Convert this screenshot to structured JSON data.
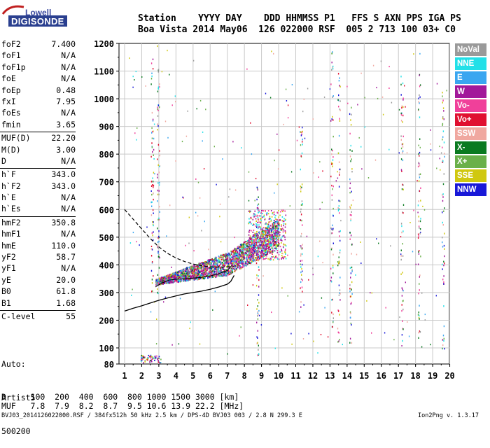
{
  "logo": {
    "top": "Lowell",
    "main": "DIGISONDE"
  },
  "header": {
    "line1": "Station    YYYY DAY    DDD HHMMSS P1   FFS S AXN PPS IGA PS",
    "line2": "Boa Vista 2014 May06  126 022000 RSF  005 2 713 100 03+ C0"
  },
  "params": [
    {
      "k": "foF2",
      "v": "7.400"
    },
    {
      "k": "foF1",
      "v": "N/A"
    },
    {
      "k": "foF1p",
      "v": "N/A"
    },
    {
      "k": "foE",
      "v": "N/A"
    },
    {
      "k": "foEp",
      "v": "0.48"
    },
    {
      "k": "fxI",
      "v": "7.95"
    },
    {
      "k": "foEs",
      "v": "N/A"
    },
    {
      "k": "fmin",
      "v": "3.65"
    },
    {
      "k": "MUF(D)",
      "v": "22.20"
    },
    {
      "k": "M(D)",
      "v": "3.00"
    },
    {
      "k": "D",
      "v": "N/A"
    },
    {
      "k": "h`F",
      "v": "343.0"
    },
    {
      "k": "h`F2",
      "v": "343.0"
    },
    {
      "k": "h`E",
      "v": "N/A"
    },
    {
      "k": "h`Es",
      "v": "N/A"
    },
    {
      "k": "hmF2",
      "v": "350.8"
    },
    {
      "k": "hmF1",
      "v": "N/A"
    },
    {
      "k": "hmE",
      "v": "110.0"
    },
    {
      "k": "yF2",
      "v": "58.7"
    },
    {
      "k": "yF1",
      "v": "N/A"
    },
    {
      "k": "yE",
      "v": "20.0"
    },
    {
      "k": "B0",
      "v": "61.8"
    },
    {
      "k": "B1",
      "v": "1.68"
    },
    {
      "k": "C-level",
      "v": "55"
    }
  ],
  "auto": {
    "line1": "Auto:",
    "line2": "Artist5",
    "line3": "500200"
  },
  "footer": {
    "d_line": "D     100  200  400  600  800 1000 1500 3000 [km]",
    "muf_line": "MUF   7.8  7.9  8.2  8.7  9.5 10.6 13.9 22.2 [MHz]",
    "file_line": "BVJ03_2014126022000.RSF / 384fx512h 50 kHz 2.5 km / DPS-4D BVJ03 003 / 2.8 N 299.3 E",
    "version": "Ion2Png v. 1.3.17"
  },
  "legend": [
    {
      "label": "NoVal",
      "color": "#9a9a9a"
    },
    {
      "label": "NNE",
      "color": "#22e0e8"
    },
    {
      "label": "E",
      "color": "#3aa6f0"
    },
    {
      "label": "W",
      "color": "#a2189a"
    },
    {
      "label": "Vo-",
      "color": "#f0409a"
    },
    {
      "label": "Vo+",
      "color": "#e01030"
    },
    {
      "label": "SSW",
      "color": "#f0a8a0"
    },
    {
      "label": "X-",
      "color": "#0a7a20"
    },
    {
      "label": "X+",
      "color": "#6ab04a"
    },
    {
      "label": "SSE",
      "color": "#d0c810"
    },
    {
      "label": "NNW",
      "color": "#1818d8"
    }
  ],
  "chart_data": {
    "type": "scatter",
    "xlim": [
      1,
      20
    ],
    "ylim": [
      80,
      1200
    ],
    "xticks": [
      "1",
      "2",
      "3",
      "4",
      "5",
      "6",
      "7",
      "8",
      "9",
      "10",
      "11",
      "12",
      "13",
      "14",
      "15",
      "16",
      "17",
      "18",
      "19",
      "20"
    ],
    "yticks": [
      "80",
      "100",
      "200",
      "300",
      "400",
      "500",
      "600",
      "700",
      "800",
      "900",
      "1000",
      "1100",
      "1200"
    ],
    "grid": true,
    "xlabel": "",
    "ylabel": "",
    "virtual_height_curve": {
      "x": [
        1.0,
        1.5,
        2.0,
        2.5,
        3.0,
        3.5,
        4.0,
        4.5,
        5.0,
        5.5,
        6.0,
        6.5,
        7.0,
        7.2,
        7.4
      ],
      "y": [
        233,
        243,
        252,
        262,
        272,
        280,
        288,
        295,
        300,
        305,
        312,
        320,
        330,
        340,
        362
      ]
    },
    "real_height_curve": {
      "x": [
        1.0,
        1.5,
        2.0,
        2.5,
        3.0,
        3.5,
        4.0,
        4.5,
        5.0,
        5.5,
        6.0,
        6.5,
        7.0,
        7.4
      ],
      "y": [
        600,
        565,
        530,
        495,
        465,
        442,
        425,
        412,
        403,
        397,
        393,
        392,
        393,
        394
      ]
    },
    "trace_curve": {
      "x": [
        2.8,
        3.2,
        3.6,
        4.0,
        4.5,
        5.0,
        5.5,
        6.0,
        6.5,
        7.0,
        7.3
      ],
      "y": [
        320,
        335,
        345,
        348,
        350,
        352,
        355,
        360,
        368,
        380,
        400
      ]
    }
  }
}
